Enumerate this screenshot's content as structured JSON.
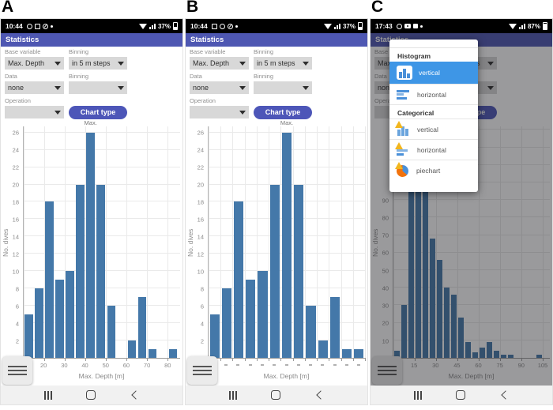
{
  "colors": {
    "bar": "#4478a9",
    "appbar": "#4e57b2",
    "button": "#4d56b8",
    "popup_selected": "#3e96e6",
    "icon_blue": "#4a90d9",
    "warning_yellow": "#f2b61e",
    "pie_orange": "#f2720c"
  },
  "panels": {
    "A": {
      "panel_label": "A",
      "statusbar": {
        "time": "10:44",
        "battery_percent": "37%",
        "icons_left": [
          "whatsapp-icon",
          "gallery-icon",
          "compass-icon",
          "notification-dot"
        ],
        "icons_right": [
          "wifi-icon",
          "signal-icon",
          "battery-icon"
        ]
      },
      "appbar": {
        "title": "Statistics"
      },
      "form": {
        "base_variable": {
          "label": "Base variable",
          "value": "Max. Depth"
        },
        "binning1": {
          "label": "Binning",
          "value": "in 5 m steps"
        },
        "data": {
          "label": "Data",
          "value": "none"
        },
        "binning2": {
          "label": "Binning",
          "value": ""
        },
        "operation": {
          "label": "Operation",
          "value": ""
        },
        "chart_type_button": "Chart type"
      }
    },
    "B": {
      "panel_label": "B",
      "statusbar": {
        "time": "10:44",
        "battery_percent": "37%",
        "icons_left": [
          "gallery-icon",
          "whatsapp-icon",
          "compass-icon",
          "notification-dot"
        ],
        "icons_right": [
          "wifi-icon",
          "signal-icon",
          "battery-icon"
        ]
      },
      "appbar": {
        "title": "Statistics"
      },
      "form": {
        "base_variable": {
          "label": "Base variable",
          "value": "Max. Depth"
        },
        "binning1": {
          "label": "Binning",
          "value": "in 5 m steps"
        },
        "data": {
          "label": "Data",
          "value": "none"
        },
        "binning2": {
          "label": "Binning",
          "value": ""
        },
        "operation": {
          "label": "Operation",
          "value": ""
        },
        "chart_type_button": "Chart type"
      }
    },
    "C": {
      "panel_label": "C",
      "statusbar": {
        "time": "17:43",
        "battery_percent": "87%",
        "icons_left": [
          "whatsapp-icon",
          "youtube-icon",
          "speaker-icon",
          "notification-dot"
        ],
        "icons_right": [
          "wifi-icon",
          "signal-icon",
          "battery-icon"
        ]
      },
      "appbar": {
        "title": "Statistics"
      },
      "form": {
        "base_variable": {
          "label": "Base variable",
          "value": "Max. Depth"
        },
        "binning1": {
          "label": "Binning",
          "value": "in 5 m steps"
        },
        "data": {
          "label": "Data",
          "value": "none"
        },
        "binning2": {
          "label": "Binning",
          "value": ""
        },
        "operation": {
          "label": "Operation",
          "value": ""
        },
        "chart_type_button": "Chart type"
      },
      "popup": {
        "sections": [
          {
            "title": "Histogram",
            "items": [
              {
                "icon": "histogram-vertical-icon",
                "label": "vertical",
                "selected": true
              },
              {
                "icon": "histogram-horizontal-icon",
                "label": "horizontal",
                "selected": false
              }
            ]
          },
          {
            "title": "Categorical",
            "items": [
              {
                "icon": "categorical-vertical-warning-icon",
                "label": "vertical",
                "selected": false
              },
              {
                "icon": "categorical-horizontal-warning-icon",
                "label": "horizontal",
                "selected": false
              },
              {
                "icon": "piechart-warning-icon",
                "label": "piechart",
                "selected": false
              }
            ]
          }
        ]
      }
    }
  },
  "chart_data": [
    {
      "panel": "A",
      "type": "bar",
      "xlabel": "Max. Depth [m]",
      "ylabel": "No. dives",
      "annotation": {
        "text": "Max.",
        "bar_index": 6
      },
      "categorical": false,
      "bin_start": 10,
      "bin_width": 5,
      "values": [
        5,
        8,
        18,
        9,
        10,
        20,
        26,
        20,
        6,
        0,
        2,
        7,
        1,
        0,
        1
      ],
      "x_ticks": [
        10,
        20,
        30,
        40,
        50,
        60,
        70,
        80
      ],
      "x_range": [
        10,
        86
      ],
      "y_ticks": [
        0,
        2,
        4,
        6,
        8,
        10,
        12,
        14,
        16,
        18,
        20,
        22,
        24,
        26
      ],
      "y_max": 26.7,
      "y_grid_step": 2,
      "y_grid_max": 26
    },
    {
      "panel": "B",
      "type": "bar",
      "xlabel": "Max. Depth [m]",
      "ylabel": "No. dives",
      "annotation": {
        "text": "Max.",
        "bar_index": 6
      },
      "categorical": true,
      "x_tick_style": "dash",
      "values": [
        5,
        8,
        18,
        9,
        10,
        20,
        26,
        20,
        6,
        2,
        7,
        1,
        1
      ],
      "x_ticks": [],
      "y_ticks": [
        0,
        2,
        4,
        6,
        8,
        10,
        12,
        14,
        16,
        18,
        20,
        22,
        24,
        26
      ],
      "y_max": 26.7,
      "y_grid_step": 2,
      "y_grid_max": 26
    },
    {
      "panel": "C",
      "type": "bar",
      "xlabel": "Max. Depth [m]",
      "ylabel": "No. dives",
      "annotation": null,
      "categorical": false,
      "bin_start": 0,
      "bin_width": 5,
      "values": [
        4,
        30,
        96,
        98,
        95,
        68,
        56,
        40,
        36,
        23,
        9,
        3,
        6,
        9,
        4,
        2,
        2,
        0,
        0,
        0,
        2
      ],
      "x_ticks": [
        0,
        15,
        30,
        45,
        60,
        75,
        90,
        105
      ],
      "x_range": [
        0,
        110
      ],
      "y_ticks": [
        0,
        10,
        20,
        30,
        40,
        50,
        60,
        70,
        80,
        90
      ],
      "y_max": 132,
      "y_grid_step": 10,
      "y_grid_max": 130
    }
  ]
}
